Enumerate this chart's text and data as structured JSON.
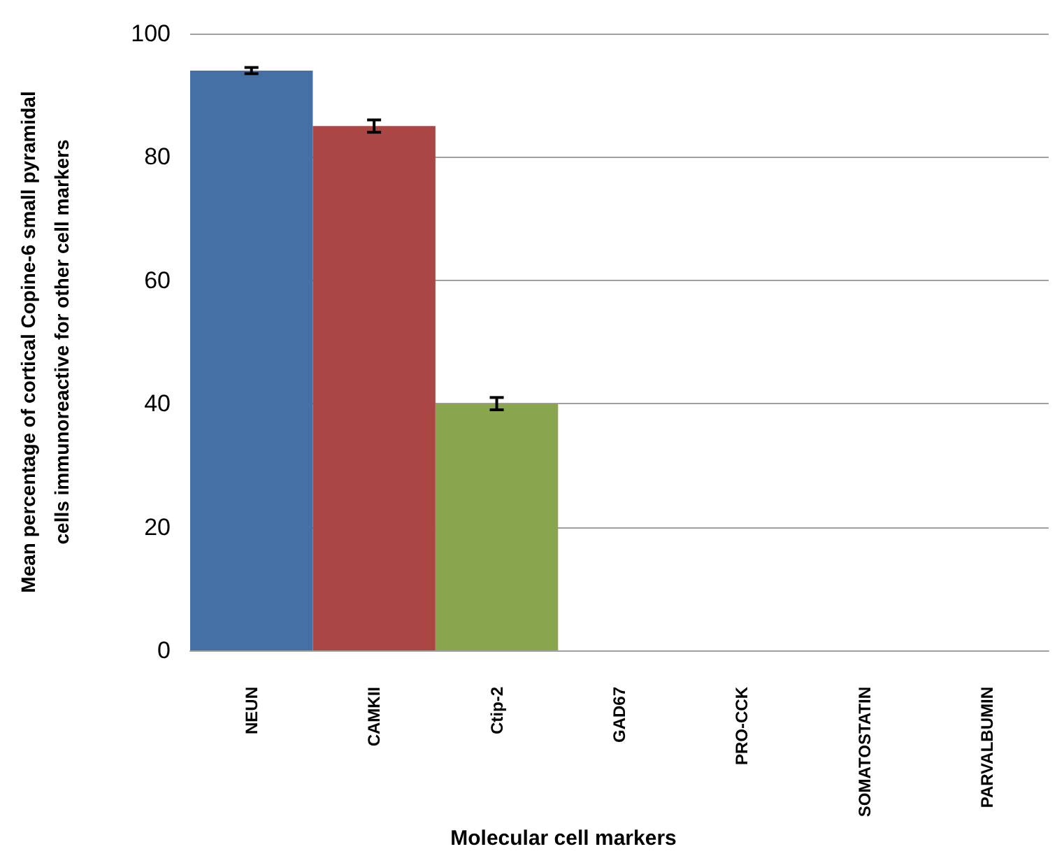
{
  "chart_data": {
    "type": "bar",
    "categories": [
      "NEUN",
      "CAMKII",
      "Ctip-2",
      "GAD67",
      "PRO-CCK",
      "SOMATOSTATIN",
      "PARVALBUMIN"
    ],
    "values": [
      94,
      85,
      40,
      0,
      0,
      0,
      0
    ],
    "errors": [
      0.5,
      1,
      1,
      null,
      null,
      null,
      null
    ],
    "colors": [
      "#4470a5",
      "#aa4644",
      "#89a54e",
      "#71588f",
      "#4198af",
      "#db843d",
      "#93a9cf"
    ],
    "xlabel": "Molecular cell markers",
    "ylabel": "Mean percentage of cortical Copine-6 small pyramidal\ncells immunoreactive for other cell markers",
    "ylim": [
      0,
      100
    ],
    "yticks": [
      0,
      20,
      40,
      60,
      80,
      100
    ],
    "grid": "y"
  }
}
